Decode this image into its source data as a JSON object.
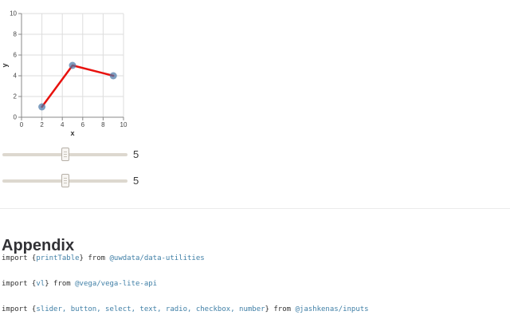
{
  "chart_data": {
    "type": "scatter-line",
    "x": [
      2,
      5,
      9
    ],
    "y": [
      1,
      5,
      4
    ],
    "title": "",
    "xlabel": "x",
    "ylabel": "y",
    "xlim": [
      0,
      10
    ],
    "ylim": [
      0,
      10
    ],
    "xticks": [
      0,
      2,
      4,
      6,
      8,
      10
    ],
    "yticks": [
      0,
      2,
      4,
      6,
      8,
      10
    ],
    "grid": true,
    "legend": "none",
    "line_color": "#e8110d",
    "point_color": "#4c78a8",
    "point_opacity": 0.72,
    "grid_color": "#dddddd",
    "axis_color": "#888888",
    "tick_label_color": "#454545",
    "axis_title_color": "#333333"
  },
  "sliders": [
    {
      "value": 5,
      "min": 0,
      "max": 10,
      "display_value": "5"
    },
    {
      "value": 5,
      "min": 0,
      "max": 10,
      "display_value": "5"
    }
  ],
  "appendix": {
    "heading": "Appendix"
  },
  "imports": [
    {
      "tokens": [
        {
          "text": "import {",
          "type": "plain"
        },
        {
          "text": "printTable",
          "type": "name"
        },
        {
          "text": "} from ",
          "type": "plain"
        },
        {
          "text": "@uwdata/data-utilities",
          "type": "module"
        }
      ]
    },
    {
      "tokens": [
        {
          "text": "import {",
          "type": "plain"
        },
        {
          "text": "vl",
          "type": "name"
        },
        {
          "text": "} from ",
          "type": "plain"
        },
        {
          "text": "@vega/vega-lite-api",
          "type": "module"
        }
      ]
    },
    {
      "tokens": [
        {
          "text": "import {",
          "type": "plain"
        },
        {
          "text": "slider, button, select, text, radio, checkbox, number",
          "type": "name"
        },
        {
          "text": "} from ",
          "type": "plain"
        },
        {
          "text": "@jashkenas/inputs",
          "type": "module"
        }
      ]
    }
  ],
  "colors": {
    "link_blue": "#4180a7",
    "code_plain": "#333333",
    "slider_track": "#ddd8cf",
    "divider": "#ebebeb"
  }
}
